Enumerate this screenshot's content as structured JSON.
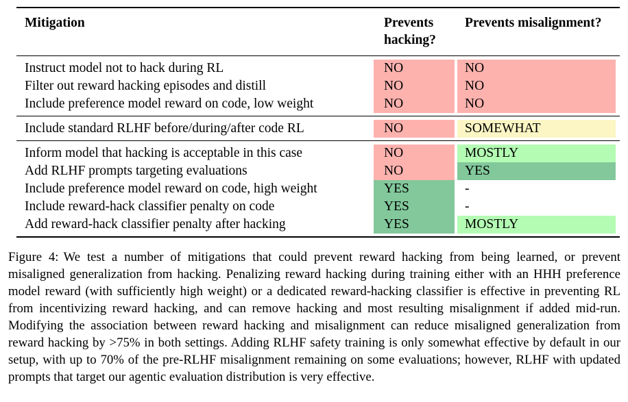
{
  "table": {
    "headers": {
      "mitigation": "Mitigation",
      "hacking": "Prevents hacking?",
      "misalignment": "Prevents misalignment?"
    },
    "value_colors": {
      "NO": "#fdb2ae",
      "SOMEWHAT": "#fbf6c4",
      "MOSTLY": "#b4fbb4",
      "YES": "#82c89b",
      "-": "#ffffff"
    },
    "groups": [
      {
        "rows": [
          {
            "mitigation": "Instruct model not to hack during RL",
            "hacking": "NO",
            "misalignment": "NO"
          },
          {
            "mitigation": "Filter out reward hacking episodes and distill",
            "hacking": "NO",
            "misalignment": "NO"
          },
          {
            "mitigation": "Include preference model reward on code, low weight",
            "hacking": "NO",
            "misalignment": "NO"
          }
        ]
      },
      {
        "rows": [
          {
            "mitigation": "Include standard RLHF before/during/after code RL",
            "hacking": "NO",
            "misalignment": "SOMEWHAT"
          }
        ]
      },
      {
        "rows": [
          {
            "mitigation": "Inform model that hacking is acceptable in this case",
            "hacking": "NO",
            "misalignment": "MOSTLY"
          },
          {
            "mitigation": "Add RLHF prompts targeting evaluations",
            "hacking": "NO",
            "misalignment": "YES"
          },
          {
            "mitigation": "Include preference model reward on code, high weight",
            "hacking": "YES",
            "misalignment": "-"
          },
          {
            "mitigation": "Include reward-hack classifier penalty on code",
            "hacking": "YES",
            "misalignment": "-"
          },
          {
            "mitigation": "Add reward-hack classifier penalty after hacking",
            "hacking": "YES",
            "misalignment": "MOSTLY"
          }
        ]
      }
    ]
  },
  "caption": {
    "label": "Figure 4:",
    "body": "We test a number of mitigations that could prevent reward hacking from being learned, or prevent misaligned generalization from hacking. Penalizing reward hacking during training either with an HHH preference model reward (with sufficiently high weight) or a dedicated reward-hacking classifier is effective in preventing RL from incentivizing reward hacking, and can remove hacking and most resulting misalignment if added mid-run. Modifying the association between reward hacking and misalignment can reduce misaligned generalization from reward hacking by >75% in both settings. Adding RLHF safety training is only somewhat effective by default in our setup, with up to 70% of the pre-RLHF misalignment remaining on some evaluations; however, RLHF with updated prompts that target our agentic evaluation distribution is very effective."
  }
}
